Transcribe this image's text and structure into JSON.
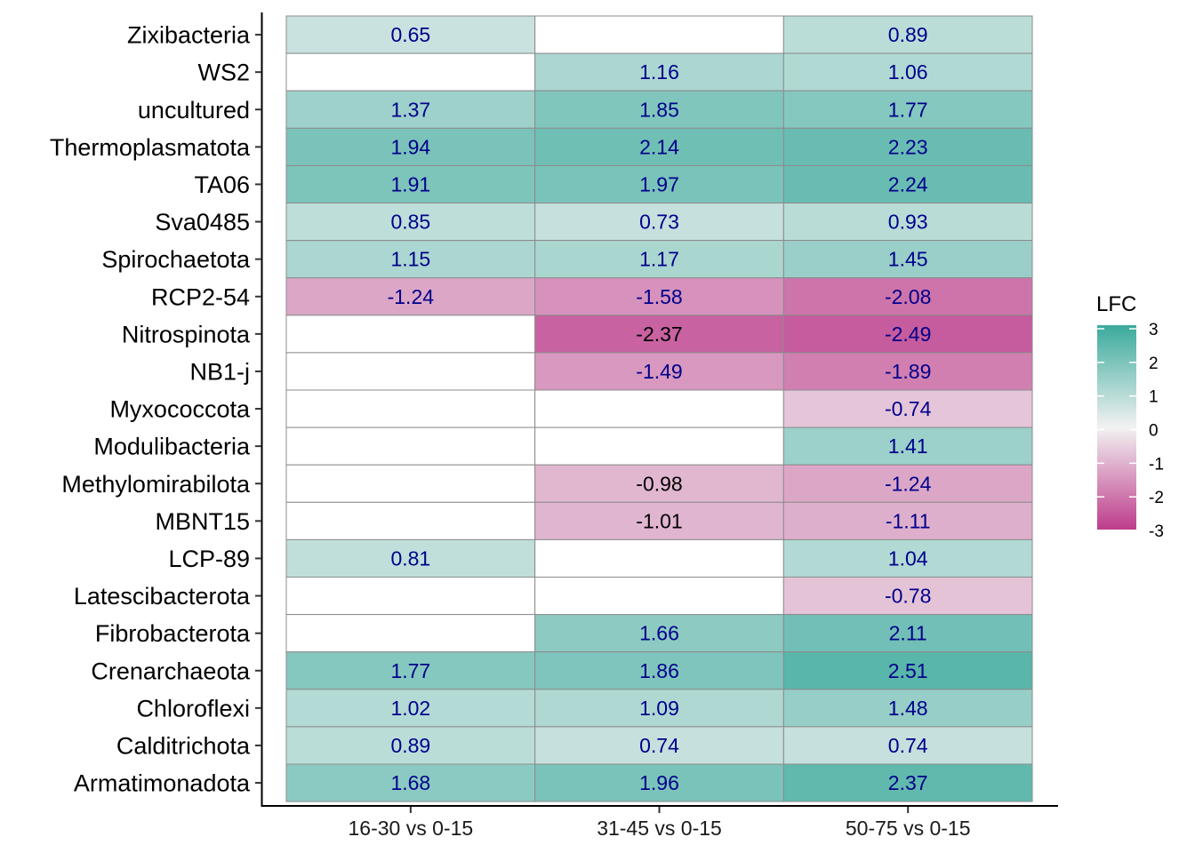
{
  "chart_data": {
    "type": "heatmap",
    "columns": [
      "16-30 vs 0-15",
      "31-45 vs 0-15",
      "50-75 vs 0-15"
    ],
    "rows": [
      "Zixibacteria",
      "WS2",
      "uncultured",
      "Thermoplasmatota",
      "TA06",
      "Sva0485",
      "Spirochaetota",
      "RCP2-54",
      "Nitrospinota",
      "NB1-j",
      "Myxococcota",
      "Modulibacteria",
      "Methylomirabilota",
      "MBNT15",
      "LCP-89",
      "Latescibacterota",
      "Fibrobacterota",
      "Crenarchaeota",
      "Chloroflexi",
      "Calditrichota",
      "Armatimonadota"
    ],
    "values": [
      [
        0.65,
        null,
        0.89
      ],
      [
        null,
        1.16,
        1.06
      ],
      [
        1.37,
        1.85,
        1.77
      ],
      [
        1.94,
        2.14,
        2.23
      ],
      [
        1.91,
        1.97,
        2.24
      ],
      [
        0.85,
        0.73,
        0.93
      ],
      [
        1.15,
        1.17,
        1.45
      ],
      [
        -1.24,
        -1.58,
        -2.08
      ],
      [
        null,
        -2.37,
        -2.49
      ],
      [
        null,
        -1.49,
        -1.89
      ],
      [
        null,
        null,
        -0.74
      ],
      [
        null,
        null,
        1.41
      ],
      [
        null,
        -0.98,
        -1.24
      ],
      [
        null,
        -1.01,
        -1.11
      ],
      [
        0.81,
        null,
        1.04
      ],
      [
        null,
        null,
        -0.78
      ],
      [
        null,
        1.66,
        2.11
      ],
      [
        1.77,
        1.86,
        2.51
      ],
      [
        1.02,
        1.09,
        1.48
      ],
      [
        0.89,
        0.74,
        0.74
      ],
      [
        1.68,
        1.96,
        2.37
      ]
    ],
    "labels": [
      [
        "0.65",
        "",
        "0.89"
      ],
      [
        "",
        "1.16",
        "1.06"
      ],
      [
        "1.37",
        "1.85",
        "1.77"
      ],
      [
        "1.94",
        "2.14",
        "2.23"
      ],
      [
        "1.91",
        "1.97",
        "2.24"
      ],
      [
        "0.85",
        "0.73",
        "0.93"
      ],
      [
        "1.15",
        "1.17",
        "1.45"
      ],
      [
        "-1.24",
        "-1.58",
        "-2.08"
      ],
      [
        "",
        "-2.37",
        "-2.49"
      ],
      [
        "",
        "-1.49",
        "-1.89"
      ],
      [
        "",
        "",
        "-0.74"
      ],
      [
        "",
        "",
        "1.41"
      ],
      [
        "",
        "-0.98",
        "-1.24"
      ],
      [
        "",
        "-1.01",
        "-1.11"
      ],
      [
        "0.81",
        "",
        "1.04"
      ],
      [
        "",
        "",
        "-0.78"
      ],
      [
        "",
        "1.66",
        "2.11"
      ],
      [
        "1.77",
        "1.86",
        "2.51"
      ],
      [
        "1.02",
        "1.09",
        "1.48"
      ],
      [
        "0.89",
        "0.74",
        "0.74"
      ],
      [
        "1.68",
        "1.96",
        "2.37"
      ]
    ],
    "label_colors": [
      [
        "#00008B",
        "",
        "#00008B"
      ],
      [
        "",
        "#00008B",
        "#00008B"
      ],
      [
        "#00008B",
        "#00008B",
        "#00008B"
      ],
      [
        "#00008B",
        "#00008B",
        "#00008B"
      ],
      [
        "#00008B",
        "#00008B",
        "#00008B"
      ],
      [
        "#00008B",
        "#00008B",
        "#00008B"
      ],
      [
        "#00008B",
        "#00008B",
        "#00008B"
      ],
      [
        "#00008B",
        "#00008B",
        "#00008B"
      ],
      [
        "",
        "#000000",
        "#00008B"
      ],
      [
        "",
        "#00008B",
        "#00008B"
      ],
      [
        "",
        "",
        "#00008B"
      ],
      [
        "",
        "",
        "#00008B"
      ],
      [
        "",
        "#000000",
        "#00008B"
      ],
      [
        "",
        "#000000",
        "#00008B"
      ],
      [
        "#00008B",
        "",
        "#00008B"
      ],
      [
        "",
        "",
        "#00008B"
      ],
      [
        "",
        "#00008B",
        "#00008B"
      ],
      [
        "#00008B",
        "#00008B",
        "#00008B"
      ],
      [
        "#00008B",
        "#00008B",
        "#00008B"
      ],
      [
        "#00008B",
        "#00008B",
        "#00008B"
      ],
      [
        "#00008B",
        "#00008B",
        "#00008B"
      ]
    ],
    "color_scale": {
      "low": "#BD3C8B",
      "mid": "#F2F2F2",
      "high": "#3AAA9C",
      "limits": [
        -3,
        3
      ]
    },
    "missing_color": "#FFFFFF",
    "legend": {
      "title": "LFC",
      "ticks": [
        "3",
        "2",
        "1",
        "0",
        "-1",
        "-2",
        "-3"
      ],
      "position": "right"
    }
  }
}
